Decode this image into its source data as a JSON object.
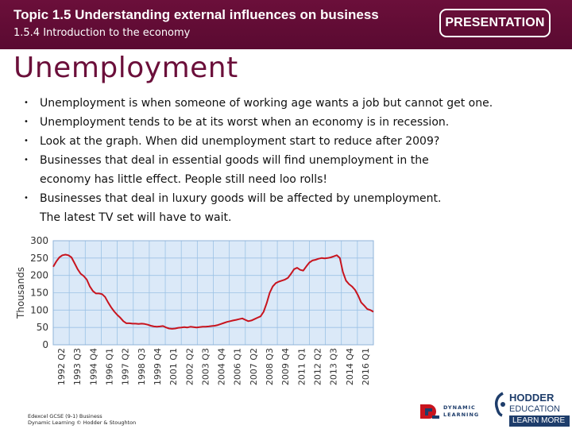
{
  "header": {
    "topic_title": "Topic 1.5 Understanding external influences on business",
    "topic_subtitle": "1.5.4 Introduction to the economy",
    "badge": "PRESENTATION"
  },
  "slide": {
    "title": "Unemployment",
    "bullets": [
      "Unemployment is when someone of working age wants a job but cannot get one.",
      "Unemployment tends to be at its worst when an economy is in recession.",
      "Look at the graph. When did unemployment start to reduce after 2009?",
      "Businesses that deal in essential goods will find unemployment in the\neconomy has little effect. People still need loo rolls!",
      "Businesses that deal in luxury goods will be affected by unemployment.\nThe latest TV set will have to wait."
    ]
  },
  "chart_data": {
    "type": "line",
    "ylabel": "Thousands",
    "xlabel": "",
    "ylim": [
      0,
      300
    ],
    "yticks": [
      0,
      50,
      100,
      150,
      200,
      250,
      300
    ],
    "grid": true,
    "xtick_labels": [
      "1992 Q2",
      "1993 Q3",
      "1994 Q4",
      "1996 Q1",
      "1997 Q2",
      "1998 Q3",
      "1999 Q4",
      "2001 Q1",
      "2002 Q2",
      "2003 Q3",
      "2004 Q4",
      "2006 Q1",
      "2007 Q2",
      "2008 Q3",
      "2009 Q4",
      "2011 Q1",
      "2012 Q2",
      "2013 Q3",
      "2014 Q4",
      "2016 Q1"
    ],
    "series": [
      {
        "values": [
          225,
          240,
          252,
          258,
          260,
          258,
          252,
          235,
          218,
          205,
          198,
          188,
          168,
          155,
          148,
          148,
          146,
          138,
          122,
          108,
          96,
          86,
          78,
          68,
          62,
          62,
          61,
          61,
          60,
          61,
          60,
          58,
          55,
          53,
          52,
          53,
          54,
          50,
          47,
          46,
          47,
          49,
          50,
          51,
          50,
          52,
          51,
          50,
          51,
          52,
          52,
          53,
          54,
          55,
          57,
          60,
          63,
          66,
          68,
          70,
          72,
          74,
          76,
          72,
          68,
          70,
          74,
          78,
          82,
          95,
          120,
          150,
          168,
          178,
          182,
          185,
          188,
          193,
          205,
          218,
          222,
          216,
          214,
          226,
          237,
          243,
          245,
          248,
          250,
          249,
          250,
          252,
          255,
          258,
          250,
          210,
          185,
          175,
          168,
          158,
          142,
          122,
          113,
          103,
          100,
          95
        ]
      }
    ]
  },
  "footer": {
    "line1": "Edexcel GCSE (9-1) Business",
    "line2": "Dynamic Learning © Hodder & Stoughton"
  },
  "logos": {
    "dynamic_line1": "DYNAMIC",
    "dynamic_line2": "LEARNING",
    "hodder_name": "HODDER",
    "hodder_edu": "EDUCATION",
    "hodder_more": "LEARN MORE"
  },
  "colors": {
    "header_bg": "#6b0f3a",
    "title": "#6b0f3a",
    "plot_bg": "#dbe9f8",
    "line": "#c8141e",
    "grid": "#9cc2e5",
    "brand_blue": "#1e3d6b"
  },
  "icons": [
    "bullet-dot-icon",
    "dynamic-learning-logo-icon",
    "hodder-logo-icon"
  ]
}
